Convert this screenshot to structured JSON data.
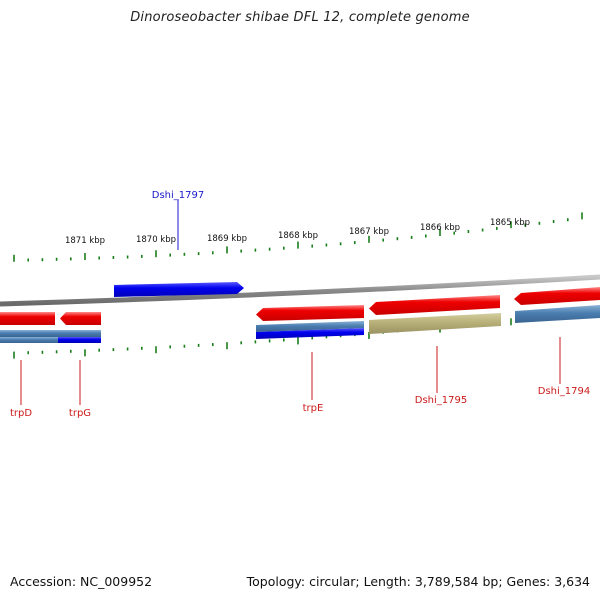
{
  "title": "Dinoroseobacter shibae DFL 12, complete genome",
  "footer": {
    "accession": "Accession: NC_009952",
    "summary": "Topology: circular; Length: 3,789,584 bp; Genes: 3,634"
  },
  "scale_labels": [
    "1871 kbp",
    "1870 kbp",
    "1869 kbp",
    "1868 kbp",
    "1867 kbp",
    "1866 kbp",
    "1865 kbp"
  ],
  "gene_labels": {
    "top": [
      "Dshi_1797"
    ],
    "bottom": [
      "trpD",
      "trpG",
      "trpE",
      "Dshi_1795",
      "Dshi_1794"
    ]
  },
  "colors": {
    "forward_cds": "#0000ee",
    "reverse_cds": "#ee0000",
    "gene_bar": "#4a7db0",
    "highlight_bar": "#b8b078",
    "backbone": "#8a8a8a",
    "ticks": "#1a7f1a",
    "forward_label": "#1a1acc",
    "reverse_label": "#cc1a1a"
  }
}
